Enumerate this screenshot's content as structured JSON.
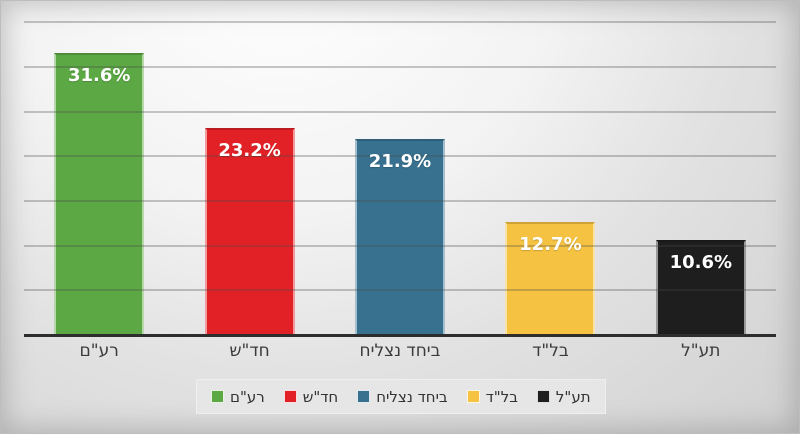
{
  "chart_data": {
    "type": "bar",
    "title": "",
    "xlabel": "",
    "ylabel": "",
    "categories": [
      "רע\"ם",
      "חד\"ש",
      "ביחד נצליח",
      "בל\"ד",
      "תע\"ל"
    ],
    "values": [
      31.6,
      23.2,
      21.9,
      12.7,
      10.6
    ],
    "value_labels": [
      "31.6%",
      "23.2%",
      "21.9%",
      "12.7%",
      "10.6%"
    ],
    "colors": [
      "#5ca844",
      "#e22127",
      "#37718f",
      "#f5c242",
      "#1e1e1e"
    ],
    "ylim": [
      0,
      37.5
    ],
    "gridline_interval": 5,
    "gridline_max": 35,
    "grid": "on",
    "y_tick_labels_visible": false,
    "legend_position": "bottom",
    "legend": [
      {
        "label": "רע\"ם",
        "color": "#5ca844"
      },
      {
        "label": "חד\"ש",
        "color": "#e22127"
      },
      {
        "label": "ביחד נצליח",
        "color": "#37718f"
      },
      {
        "label": "בל\"ד",
        "color": "#f5c242"
      },
      {
        "label": "תע\"ל",
        "color": "#1e1e1e"
      }
    ]
  }
}
